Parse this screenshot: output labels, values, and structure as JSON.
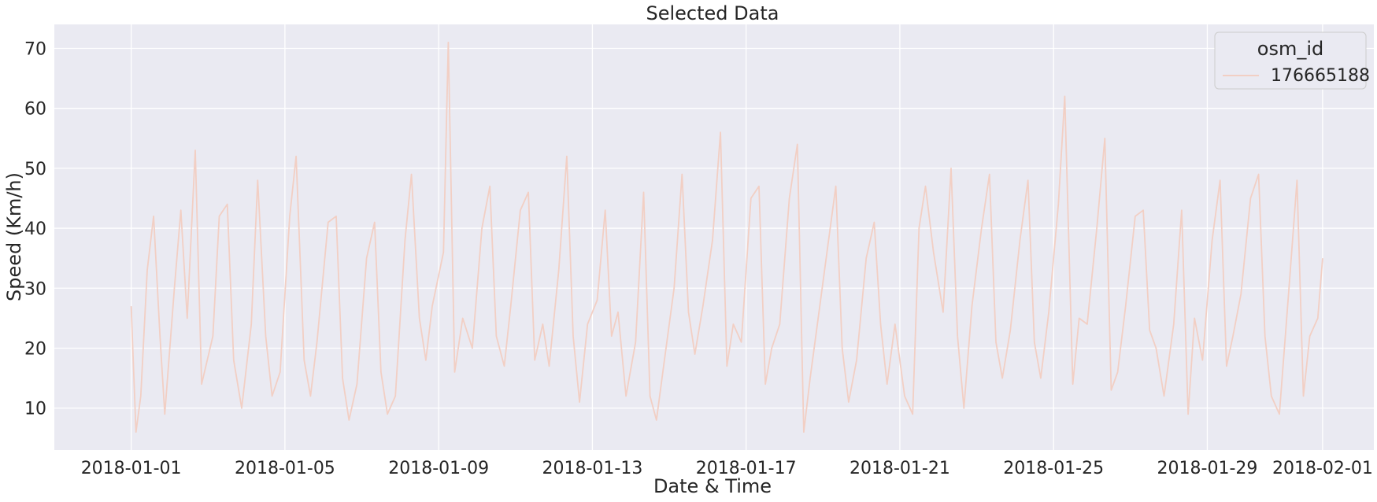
{
  "chart_data": {
    "type": "line",
    "title": "Selected Data",
    "xlabel": "Date & Time",
    "ylabel": "Speed (Km/h)",
    "xlim": [
      "2017-12-30T00:00",
      "2018-02-02T08:00"
    ],
    "ylim": [
      3,
      74
    ],
    "xticks": [
      "2018-01-01",
      "2018-01-05",
      "2018-01-09",
      "2018-01-13",
      "2018-01-17",
      "2018-01-21",
      "2018-01-25",
      "2018-01-29",
      "2018-02-01"
    ],
    "yticks": [
      10,
      20,
      30,
      40,
      50,
      60,
      70
    ],
    "grid": true,
    "legend": {
      "title": "osm_id",
      "placement": "top-right"
    },
    "colors": {
      "background": "#eaeaf2",
      "grid": "#ffffff",
      "line": "#f2cfc4"
    },
    "series": [
      {
        "name": "176665188",
        "x": [
          "2018-01-01T00:00",
          "2018-01-01T03:00",
          "2018-01-01T06:00",
          "2018-01-01T10:00",
          "2018-01-01T14:00",
          "2018-01-01T18:00",
          "2018-01-01T21:00",
          "2018-01-02T03:00",
          "2018-01-02T07:00",
          "2018-01-02T11:00",
          "2018-01-02T16:00",
          "2018-01-02T20:00",
          "2018-01-03T03:00",
          "2018-01-03T07:00",
          "2018-01-03T12:00",
          "2018-01-03T16:00",
          "2018-01-03T21:00",
          "2018-01-04T03:00",
          "2018-01-04T07:00",
          "2018-01-04T12:00",
          "2018-01-04T16:00",
          "2018-01-04T21:00",
          "2018-01-05T03:00",
          "2018-01-05T07:00",
          "2018-01-05T12:00",
          "2018-01-05T16:00",
          "2018-01-05T20:00",
          "2018-01-06T03:00",
          "2018-01-06T08:00",
          "2018-01-06T12:00",
          "2018-01-06T16:00",
          "2018-01-06T21:00",
          "2018-01-07T03:00",
          "2018-01-07T08:00",
          "2018-01-07T12:00",
          "2018-01-07T16:00",
          "2018-01-07T21:00",
          "2018-01-08T03:00",
          "2018-01-08T07:00",
          "2018-01-08T12:00",
          "2018-01-08T16:00",
          "2018-01-08T20:00",
          "2018-01-09T03:00",
          "2018-01-09T06:00",
          "2018-01-09T10:00",
          "2018-01-09T15:00",
          "2018-01-09T21:00",
          "2018-01-10T03:00",
          "2018-01-10T08:00",
          "2018-01-10T12:00",
          "2018-01-10T17:00",
          "2018-01-10T21:00",
          "2018-01-11T03:00",
          "2018-01-11T08:00",
          "2018-01-11T12:00",
          "2018-01-11T17:00",
          "2018-01-11T21:00",
          "2018-01-12T03:00",
          "2018-01-12T08:00",
          "2018-01-12T12:00",
          "2018-01-12T16:00",
          "2018-01-12T21:00",
          "2018-01-13T03:00",
          "2018-01-13T08:00",
          "2018-01-13T12:00",
          "2018-01-13T16:00",
          "2018-01-13T21:00",
          "2018-01-14T03:00",
          "2018-01-14T08:00",
          "2018-01-14T12:00",
          "2018-01-14T16:00",
          "2018-01-14T21:00",
          "2018-01-15T03:00",
          "2018-01-15T08:00",
          "2018-01-15T12:00",
          "2018-01-15T16:00",
          "2018-01-15T21:00",
          "2018-01-16T03:00",
          "2018-01-16T08:00",
          "2018-01-16T12:00",
          "2018-01-16T16:00",
          "2018-01-16T21:00",
          "2018-01-17T03:00",
          "2018-01-17T08:00",
          "2018-01-17T12:00",
          "2018-01-17T16:00",
          "2018-01-17T21:00",
          "2018-01-18T03:00",
          "2018-01-18T08:00",
          "2018-01-18T12:00",
          "2018-01-18T16:00",
          "2018-01-18T21:00",
          "2018-01-19T03:00",
          "2018-01-19T08:00",
          "2018-01-19T12:00",
          "2018-01-19T16:00",
          "2018-01-19T21:00",
          "2018-01-20T03:00",
          "2018-01-20T08:00",
          "2018-01-20T12:00",
          "2018-01-20T16:00",
          "2018-01-20T21:00",
          "2018-01-21T03:00",
          "2018-01-21T08:00",
          "2018-01-21T12:00",
          "2018-01-21T16:00",
          "2018-01-21T21:00",
          "2018-01-22T03:00",
          "2018-01-22T08:00",
          "2018-01-22T12:00",
          "2018-01-22T16:00",
          "2018-01-22T21:00",
          "2018-01-23T03:00",
          "2018-01-23T08:00",
          "2018-01-23T12:00",
          "2018-01-23T16:00",
          "2018-01-23T21:00",
          "2018-01-24T03:00",
          "2018-01-24T08:00",
          "2018-01-24T12:00",
          "2018-01-24T16:00",
          "2018-01-24T21:00",
          "2018-01-25T03:00",
          "2018-01-25T07:00",
          "2018-01-25T12:00",
          "2018-01-25T16:00",
          "2018-01-25T21:00",
          "2018-01-26T03:00",
          "2018-01-26T08:00",
          "2018-01-26T12:00",
          "2018-01-26T16:00",
          "2018-01-26T21:00",
          "2018-01-27T03:00",
          "2018-01-27T08:00",
          "2018-01-27T12:00",
          "2018-01-27T16:00",
          "2018-01-27T21:00",
          "2018-01-28T03:00",
          "2018-01-28T08:00",
          "2018-01-28T12:00",
          "2018-01-28T16:00",
          "2018-01-28T21:00",
          "2018-01-29T03:00",
          "2018-01-29T08:00",
          "2018-01-29T12:00",
          "2018-01-29T16:00",
          "2018-01-29T21:00",
          "2018-01-30T03:00",
          "2018-01-30T08:00",
          "2018-01-30T12:00",
          "2018-01-30T16:00",
          "2018-01-30T21:00",
          "2018-01-31T03:00",
          "2018-01-31T08:00",
          "2018-01-31T12:00",
          "2018-01-31T16:00",
          "2018-01-31T21:00",
          "2018-01-31T23:59"
        ],
        "y": [
          27,
          6,
          12,
          33,
          42,
          22,
          9,
          30,
          43,
          25,
          53,
          14,
          22,
          42,
          44,
          18,
          10,
          24,
          48,
          22,
          12,
          16,
          42,
          52,
          18,
          12,
          21,
          41,
          42,
          15,
          8,
          14,
          35,
          41,
          16,
          9,
          12,
          38,
          49,
          25,
          18,
          27,
          36,
          71,
          16,
          25,
          20,
          40,
          47,
          22,
          17,
          27,
          43,
          46,
          18,
          24,
          17,
          33,
          52,
          22,
          11,
          24,
          28,
          43,
          22,
          26,
          12,
          21,
          46,
          12,
          8,
          18,
          30,
          49,
          26,
          19,
          27,
          38,
          56,
          17,
          24,
          21,
          45,
          47,
          14,
          20,
          24,
          45,
          54,
          6,
          15,
          25,
          37,
          47,
          20,
          11,
          18,
          35,
          41,
          24,
          14,
          24,
          12,
          9,
          40,
          47,
          36,
          26,
          50,
          22,
          10,
          27,
          40,
          49,
          21,
          15,
          23,
          38,
          48,
          21,
          15,
          26,
          44,
          62,
          14,
          25,
          24,
          40,
          55,
          13,
          16,
          27,
          42,
          43,
          23,
          20,
          12,
          24,
          43,
          9,
          25,
          18,
          38,
          48,
          17,
          22,
          29,
          45,
          49,
          22,
          12,
          9,
          30,
          48,
          12,
          22,
          25,
          35
        ]
      }
    ]
  }
}
